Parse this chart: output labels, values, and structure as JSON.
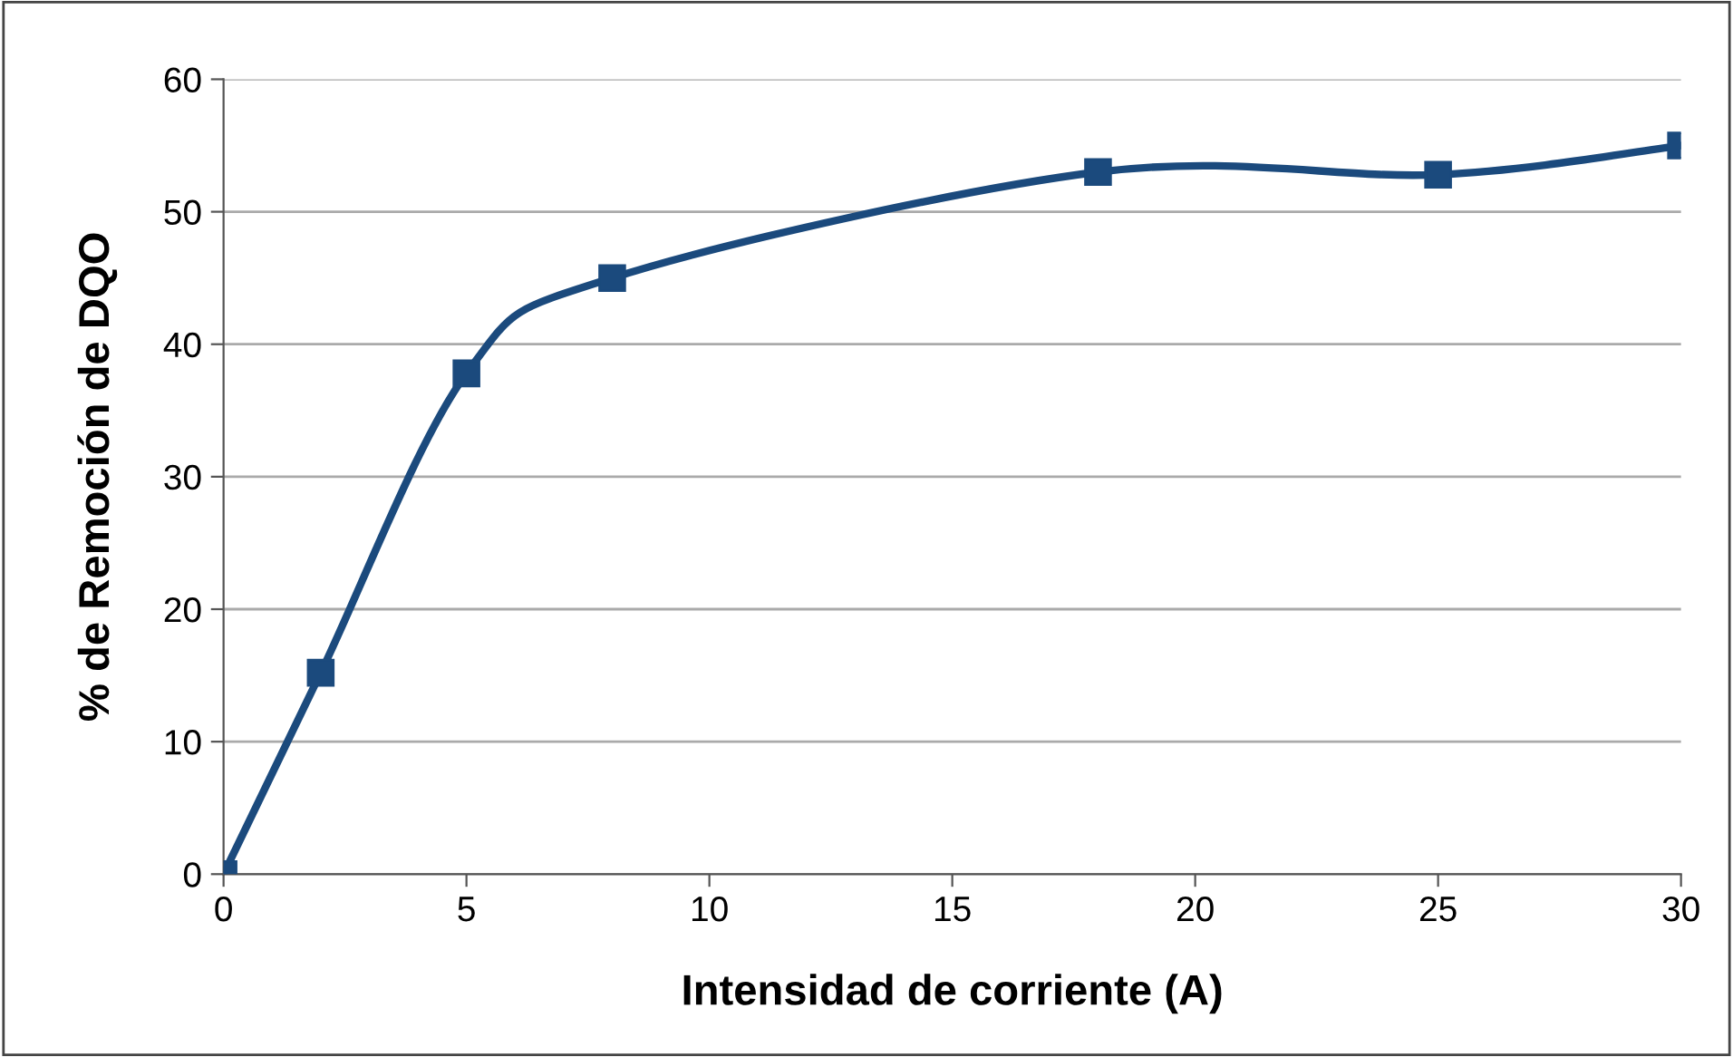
{
  "chart_data": {
    "type": "line",
    "xlabel": "Intensidad de corriente (A)",
    "ylabel": "% de Remoción de DQO",
    "x": [
      0,
      2,
      5,
      8,
      18,
      25,
      30
    ],
    "series": [
      {
        "color": "#1b4a7d",
        "values": [
          0,
          15.2,
          37.8,
          45,
          53,
          52.8,
          55
        ]
      }
    ],
    "xlim": [
      0,
      30
    ],
    "xticks": [
      0,
      5,
      10,
      15,
      20,
      25,
      30
    ],
    "ylim": [
      0,
      60
    ],
    "yticks": [
      0,
      10,
      20,
      30,
      40,
      50,
      60
    ],
    "grid": "y",
    "marker": "square",
    "line_style": "solid"
  }
}
